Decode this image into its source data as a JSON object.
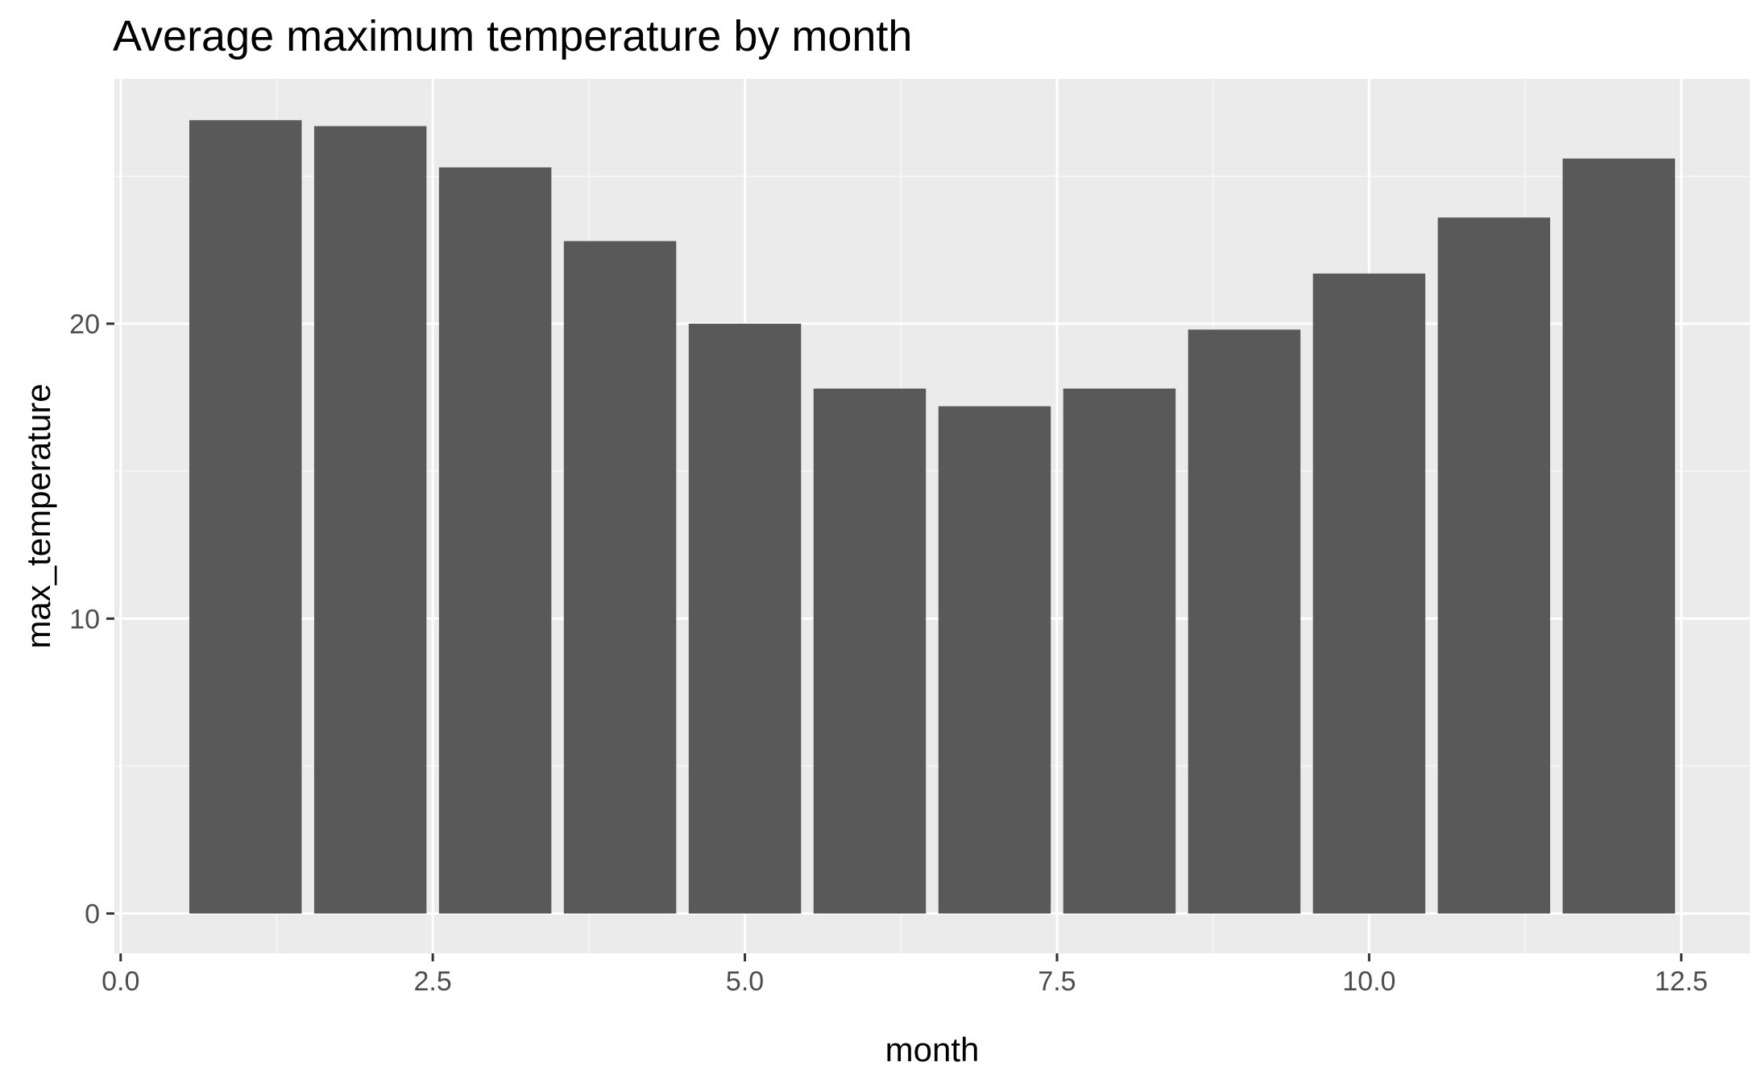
{
  "chart_data": {
    "type": "bar",
    "title": "Average maximum temperature by month",
    "xlabel": "month",
    "ylabel": "max_temperature",
    "x": [
      1,
      2,
      3,
      4,
      5,
      6,
      7,
      8,
      9,
      10,
      11,
      12
    ],
    "values": [
      26.9,
      26.7,
      25.3,
      22.8,
      20.0,
      17.8,
      17.2,
      17.8,
      19.8,
      21.7,
      23.6,
      25.6
    ],
    "bar_width": 0.9,
    "xlim": [
      -0.05,
      13.05
    ],
    "ylim": [
      -1.35,
      28.3
    ],
    "x_ticks": [
      0,
      2.5,
      5,
      7.5,
      10,
      12.5
    ],
    "x_tick_labels": [
      "0.0",
      "2.5",
      "5.0",
      "7.5",
      "10.0",
      "12.5"
    ],
    "y_ticks": [
      0,
      10,
      20
    ],
    "y_tick_labels": [
      "0",
      "10",
      "20"
    ],
    "grid": true,
    "legend": "none",
    "colors": {
      "bar": "#595959",
      "panel": "#ebebeb",
      "grid_major": "#ffffff",
      "grid_minor": "#f5f5f5",
      "tick_text": "#4d4d4d"
    }
  }
}
